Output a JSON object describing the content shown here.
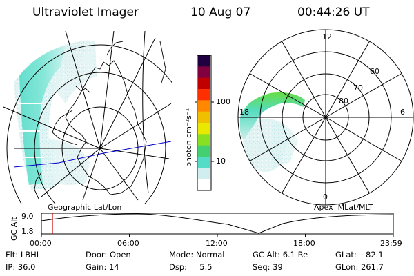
{
  "header": {
    "instrument": "Ultraviolet Imager",
    "date": "10 Aug 07",
    "time": "00:44:26 UT"
  },
  "left_panel": {
    "label": "Geographic Lat/Lon"
  },
  "right_panel": {
    "label": "Apex  MLat/MLT",
    "mlt_labels": [
      "12",
      "18",
      "6",
      "0"
    ],
    "lat_labels": [
      "60",
      "70",
      "80"
    ]
  },
  "colorbar": {
    "unit_label": "photon cm⁻²s⁻¹",
    "tick_labels": [
      "100",
      "10"
    ],
    "scale": "log",
    "colors": [
      "#ffffff",
      "#d0eef0",
      "#55dcc8",
      "#44d070",
      "#88e020",
      "#e8e800",
      "#f0c000",
      "#ff8800",
      "#ff3000",
      "#c00000",
      "#800040",
      "#200040"
    ]
  },
  "altitude_plot": {
    "ylabel": "GC Alt",
    "y_ticks": [
      "9.0",
      "1.8"
    ],
    "x_ticks": [
      "00:00",
      "06:00",
      "12:00",
      "18:00",
      "23:59"
    ],
    "marker_time": "00:44:26",
    "marker_color": "#cc0000"
  },
  "info": {
    "flt": "Flt: LBHL",
    "ip": "IP: 36.0",
    "door": "Door: Open",
    "gain": "Gain: 14",
    "mode": "Mode: Normal",
    "dsp": "Dsp:     5.5",
    "gcalt": "GC Alt: 6.1 Re",
    "seq": "Seq: 39",
    "glat": "GLat: −82.1",
    "glon": "GLon: 261.7"
  }
}
